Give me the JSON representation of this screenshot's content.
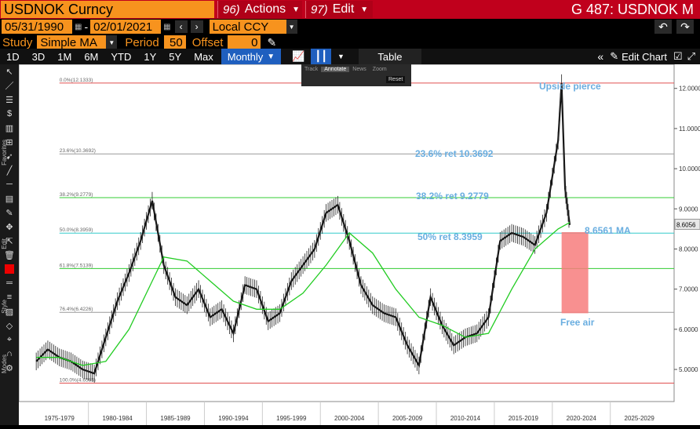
{
  "title_bar": {
    "security": "USDNOK Curncy",
    "actions_num": "96)",
    "actions_label": "Actions",
    "edit_num": "97)",
    "edit_label": "Edit",
    "page_title": "G 487: USDNOK M"
  },
  "date_bar": {
    "start_date": "05/31/1990",
    "end_date": "02/01/2021",
    "currency": "Local CCY"
  },
  "study_bar": {
    "study_label": "Study",
    "study_value": "Simple MA",
    "period_label": "Period",
    "period_value": "50",
    "offset_label": "Offset",
    "offset_value": "0"
  },
  "range_bar": {
    "ranges": [
      "1D",
      "3D",
      "1M",
      "6M",
      "YTD",
      "1Y",
      "5Y",
      "Max"
    ],
    "frequency": "Monthly",
    "table_label": "Table",
    "edit_chart_label": "Edit Chart"
  },
  "annotate_toolbar": {
    "items": [
      "Track",
      "Annotate",
      "News",
      "Zoom"
    ],
    "reset": "Reset"
  },
  "side_labels": [
    "Favorites",
    "Edit",
    "Style",
    "Modes"
  ],
  "annotations": {
    "upside": "Upside pierce",
    "ret236": "23.6% ret 10.3692",
    "ret382": "38.2% ret 9.2779",
    "ret50": "50% ret 8.3959",
    "ma": "8.6561 MA",
    "free_air": "Free air"
  },
  "colors": {
    "amber": "#f7931e",
    "red": "#c0001c",
    "ma_green": "#22cc22",
    "annotation_blue": "#6aaee0",
    "free_air_box": "#f77d7d"
  },
  "chart_data": {
    "type": "line",
    "series": [],
    "x_ticks": [
      "1975-1979",
      "1980-1984",
      "1985-1989",
      "1990-1994",
      "1995-1999",
      "2000-2004",
      "2005-2009",
      "2010-2014",
      "2015-2019",
      "2020-2024",
      "2025-2029"
    ],
    "y_ticks": [
      "12.0000",
      "11.0000",
      "10.0000",
      "9.0000",
      "8.0000",
      "7.0000",
      "6.0000",
      "5.0000"
    ],
    "ylim": [
      4.2,
      12.6
    ],
    "last_price": "8.6056",
    "fib_levels": [
      {
        "label": "0.0%(12.1333)",
        "value": 12.1333,
        "color": "#e05050"
      },
      {
        "label": "23.6%(10.3692)",
        "value": 10.3692,
        "color": "#999999"
      },
      {
        "label": "38.2%(9.2779)",
        "value": 9.2779,
        "color": "#33cc33"
      },
      {
        "label": "50.0%(8.3959)",
        "value": 8.3959,
        "color": "#33cccc"
      },
      {
        "label": "61.8%(7.5139)",
        "value": 7.5139,
        "color": "#33cc33"
      },
      {
        "label": "76.4%(6.4226)",
        "value": 6.4226,
        "color": "#999999"
      },
      {
        "label": "100.0%(4.6585)",
        "value": 4.6585,
        "color": "#e05050"
      }
    ],
    "price_points": [
      [
        1975,
        5.2
      ],
      [
        1976,
        5.5
      ],
      [
        1977,
        5.3
      ],
      [
        1978,
        5.2
      ],
      [
        1979,
        5.0
      ],
      [
        1980,
        4.9
      ],
      [
        1981,
        5.8
      ],
      [
        1982,
        6.7
      ],
      [
        1983,
        7.4
      ],
      [
        1984,
        8.2
      ],
      [
        1985,
        9.2
      ],
      [
        1986,
        7.6
      ],
      [
        1987,
        6.8
      ],
      [
        1988,
        6.6
      ],
      [
        1989,
        7.0
      ],
      [
        1990,
        6.3
      ],
      [
        1991,
        6.5
      ],
      [
        1992,
        5.9
      ],
      [
        1993,
        7.1
      ],
      [
        1994,
        7.0
      ],
      [
        1995,
        6.2
      ],
      [
        1996,
        6.4
      ],
      [
        1997,
        7.2
      ],
      [
        1998,
        7.6
      ],
      [
        1999,
        8.0
      ],
      [
        2000,
        8.9
      ],
      [
        2001,
        9.1
      ],
      [
        2002,
        8.2
      ],
      [
        2003,
        7.1
      ],
      [
        2004,
        6.6
      ],
      [
        2005,
        6.4
      ],
      [
        2006,
        6.3
      ],
      [
        2007,
        5.6
      ],
      [
        2008,
        5.1
      ],
      [
        2009,
        6.8
      ],
      [
        2010,
        6.1
      ],
      [
        2011,
        5.6
      ],
      [
        2012,
        5.8
      ],
      [
        2013,
        5.9
      ],
      [
        2014,
        6.3
      ],
      [
        2015,
        8.2
      ],
      [
        2016,
        8.4
      ],
      [
        2017,
        8.3
      ],
      [
        2018,
        8.1
      ],
      [
        2019,
        8.9
      ],
      [
        2020,
        10.7
      ],
      [
        2020.3,
        12.13
      ],
      [
        2020.6,
        9.5
      ],
      [
        2021,
        8.6
      ]
    ],
    "ma_points": [
      [
        1975,
        5.3
      ],
      [
        1977,
        5.3
      ],
      [
        1979,
        5.1
      ],
      [
        1981,
        5.2
      ],
      [
        1983,
        6.0
      ],
      [
        1985,
        7.2
      ],
      [
        1986,
        7.8
      ],
      [
        1988,
        7.7
      ],
      [
        1990,
        7.2
      ],
      [
        1992,
        6.7
      ],
      [
        1994,
        6.5
      ],
      [
        1996,
        6.5
      ],
      [
        1998,
        6.9
      ],
      [
        2000,
        7.6
      ],
      [
        2002,
        8.4
      ],
      [
        2004,
        7.9
      ],
      [
        2006,
        7.0
      ],
      [
        2008,
        6.3
      ],
      [
        2010,
        6.1
      ],
      [
        2012,
        5.8
      ],
      [
        2014,
        5.9
      ],
      [
        2016,
        7.0
      ],
      [
        2018,
        8.0
      ],
      [
        2020,
        8.5
      ],
      [
        2021,
        8.66
      ]
    ]
  }
}
